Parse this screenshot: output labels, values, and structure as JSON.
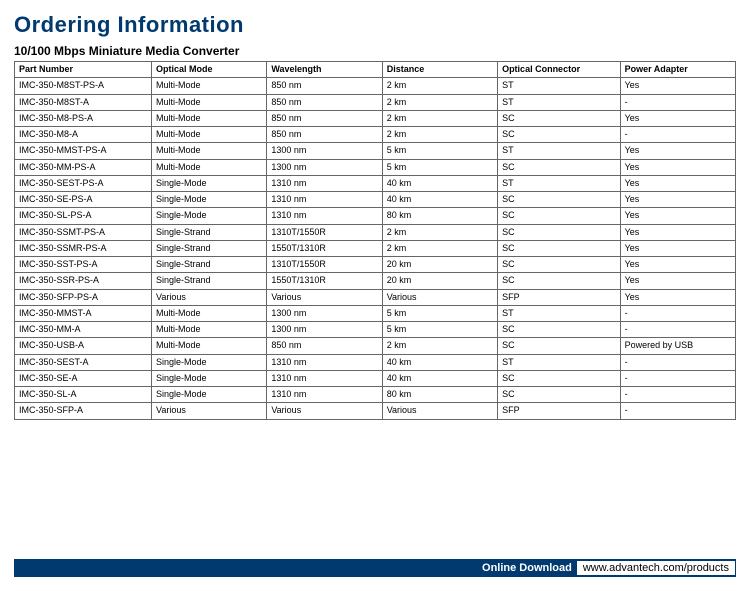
{
  "heading": "Ordering Information",
  "subheading": "10/100 Mbps Miniature Media Converter",
  "columns": [
    "Part Number",
    "Optical Mode",
    "Wavelength",
    "Distance",
    "Optical Connector",
    "Power Adapter"
  ],
  "col_widths": [
    "19%",
    "16%",
    "16%",
    "16%",
    "17%",
    "16%"
  ],
  "rows": [
    [
      "IMC-350-M8ST-PS-A",
      "Multi-Mode",
      "850 nm",
      "2 km",
      "ST",
      "Yes"
    ],
    [
      "IMC-350-M8ST-A",
      "Multi-Mode",
      "850 nm",
      "2 km",
      "ST",
      "-"
    ],
    [
      "IMC-350-M8-PS-A",
      "Multi-Mode",
      "850 nm",
      "2 km",
      "SC",
      "Yes"
    ],
    [
      "IMC-350-M8-A",
      "Multi-Mode",
      "850 nm",
      "2 km",
      "SC",
      "-"
    ],
    [
      "IMC-350-MMST-PS-A",
      "Multi-Mode",
      "1300 nm",
      "5 km",
      "ST",
      "Yes"
    ],
    [
      "IMC-350-MM-PS-A",
      "Multi-Mode",
      "1300 nm",
      "5 km",
      "SC",
      "Yes"
    ],
    [
      "IMC-350-SEST-PS-A",
      "Single-Mode",
      "1310 nm",
      "40 km",
      "ST",
      "Yes"
    ],
    [
      "IMC-350-SE-PS-A",
      "Single-Mode",
      "1310 nm",
      "40 km",
      "SC",
      "Yes"
    ],
    [
      "IMC-350-SL-PS-A",
      "Single-Mode",
      "1310 nm",
      "80 km",
      "SC",
      "Yes"
    ],
    [
      "IMC-350-SSMT-PS-A",
      "Single-Strand",
      "1310T/1550R",
      "2 km",
      "SC",
      "Yes"
    ],
    [
      "IMC-350-SSMR-PS-A",
      "Single-Strand",
      "1550T/1310R",
      "2 km",
      "SC",
      "Yes"
    ],
    [
      "IMC-350-SST-PS-A",
      "Single-Strand",
      "1310T/1550R",
      "20 km",
      "SC",
      "Yes"
    ],
    [
      "IMC-350-SSR-PS-A",
      "Single-Strand",
      "1550T/1310R",
      "20 km",
      "SC",
      "Yes"
    ],
    [
      "IMC-350-SFP-PS-A",
      "Various",
      "Various",
      "Various",
      "SFP",
      "Yes"
    ],
    [
      "IMC-350-MMST-A",
      "Multi-Mode",
      "1300 nm",
      "5 km",
      "ST",
      "-"
    ],
    [
      "IMC-350-MM-A",
      "Multi-Mode",
      "1300 nm",
      "5 km",
      "SC",
      "-"
    ],
    [
      "IMC-350-USB-A",
      "Multi-Mode",
      "850 nm",
      "2 km",
      "SC",
      "Powered by USB"
    ],
    [
      "IMC-350-SEST-A",
      "Single-Mode",
      "1310 nm",
      "40 km",
      "ST",
      "-"
    ],
    [
      "IMC-350-SE-A",
      "Single-Mode",
      "1310 nm",
      "40 km",
      "SC",
      "-"
    ],
    [
      "IMC-350-SL-A",
      "Single-Mode",
      "1310 nm",
      "80 km",
      "SC",
      "-"
    ],
    [
      "IMC-350-SFP-A",
      "Various",
      "Various",
      "Various",
      "SFP",
      "-"
    ]
  ],
  "footer": {
    "label": "Online Download",
    "url": "www.advantech.com/products"
  },
  "colors": {
    "brand": "#003a6f",
    "border": "#666666",
    "bg": "#ffffff",
    "text": "#000000"
  }
}
